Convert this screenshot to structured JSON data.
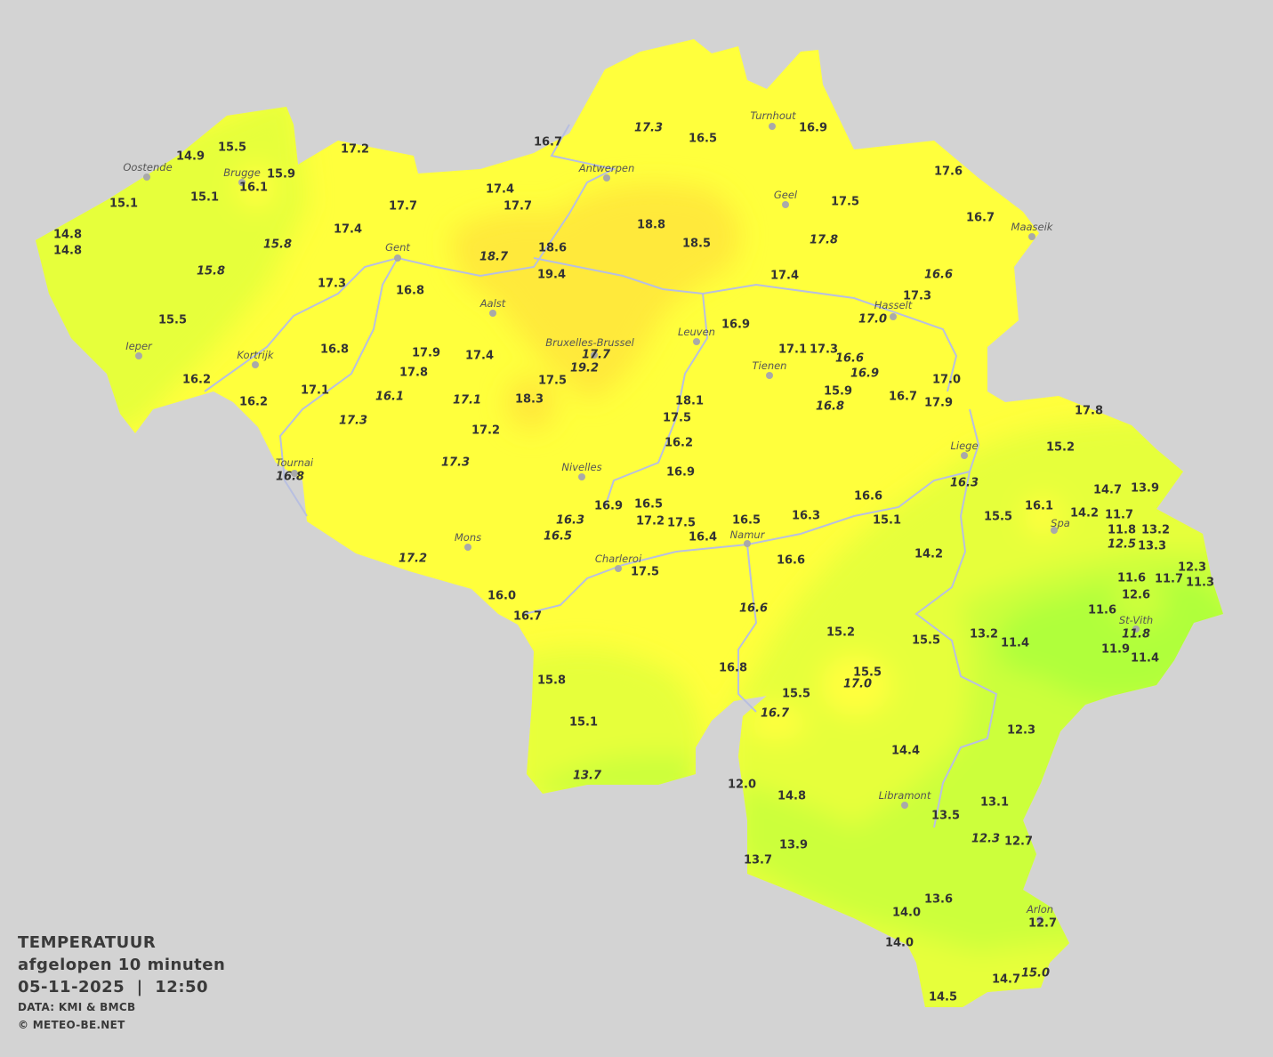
{
  "map": {
    "country": "Belgium",
    "colors": {
      "background": "#d3d3d3",
      "warm": "#ffff3c",
      "warmer": "#ffe93a",
      "mild": "#e6ff3a",
      "cool": "#ccff3a",
      "cooler": "#b0ff3a",
      "rivers": "#b8bfe0"
    },
    "cities": [
      "Oostende",
      "Brugge",
      "Antwerpen",
      "Turnhout",
      "Geel",
      "Maaseik",
      "Gent",
      "Aalst",
      "Hasselt",
      "Leuven",
      "Bruxelles-Brussel",
      "Tienen",
      "Ieper",
      "Kortrijk",
      "Tournai",
      "Nivelles",
      "Liege",
      "Spa",
      "Mons",
      "Namur",
      "Charleroi",
      "St-Vith",
      "Libramont",
      "Arlon"
    ],
    "temperatures": [
      {
        "v": "15.5"
      },
      {
        "v": "14.9"
      },
      {
        "v": "16.7"
      },
      {
        "v": "17.2"
      },
      {
        "v": "16.5"
      },
      {
        "v": "16.9"
      },
      {
        "v": "17.6"
      },
      {
        "v": "15.9"
      },
      {
        "v": "16.1"
      },
      {
        "v": "15.1"
      },
      {
        "v": "15.1"
      },
      {
        "v": "17.4"
      },
      {
        "v": "17.7"
      },
      {
        "v": "17.7"
      },
      {
        "v": "17.5"
      },
      {
        "v": "16.7"
      },
      {
        "v": "14.8"
      },
      {
        "v": "14.8"
      },
      {
        "v": "17.4"
      },
      {
        "v": "18.8"
      },
      {
        "v": "18.5"
      },
      {
        "v": "18.6"
      },
      {
        "v": "19.4"
      },
      {
        "v": "17.4"
      },
      {
        "v": "17.3"
      },
      {
        "v": "16.8"
      },
      {
        "v": "17.3"
      },
      {
        "v": "15.5"
      },
      {
        "v": "16.9"
      },
      {
        "v": "16.8"
      },
      {
        "v": "17.9"
      },
      {
        "v": "17.4"
      },
      {
        "v": "17.1"
      },
      {
        "v": "17.3"
      },
      {
        "v": "17.8"
      },
      {
        "v": "16.2"
      },
      {
        "v": "17.5"
      },
      {
        "v": "17.0"
      },
      {
        "v": "17.1"
      },
      {
        "v": "15.9"
      },
      {
        "v": "16.7"
      },
      {
        "v": "18.3"
      },
      {
        "v": "18.1"
      },
      {
        "v": "16.2"
      },
      {
        "v": "17.9"
      },
      {
        "v": "17.5"
      },
      {
        "v": "17.8"
      },
      {
        "v": "17.2"
      },
      {
        "v": "16.2"
      },
      {
        "v": "15.2"
      },
      {
        "v": "16.9"
      },
      {
        "v": "14.7"
      },
      {
        "v": "13.9"
      },
      {
        "v": "16.6"
      },
      {
        "v": "16.9"
      },
      {
        "v": "16.5"
      },
      {
        "v": "15.5"
      },
      {
        "v": "16.1"
      },
      {
        "v": "14.2"
      },
      {
        "v": "11.7"
      },
      {
        "v": "17.2"
      },
      {
        "v": "17.5"
      },
      {
        "v": "16.5"
      },
      {
        "v": "16.3"
      },
      {
        "v": "15.1"
      },
      {
        "v": "11.8"
      },
      {
        "v": "13.2"
      },
      {
        "v": "16.4"
      },
      {
        "v": "13.3"
      },
      {
        "v": "14.2"
      },
      {
        "v": "16.6"
      },
      {
        "v": "12.3"
      },
      {
        "v": "17.5"
      },
      {
        "v": "11.6"
      },
      {
        "v": "11.7"
      },
      {
        "v": "11.3"
      },
      {
        "v": "12.6"
      },
      {
        "v": "16.0"
      },
      {
        "v": "11.6"
      },
      {
        "v": "16.7"
      },
      {
        "v": "13.2"
      },
      {
        "v": "15.2"
      },
      {
        "v": "15.5"
      },
      {
        "v": "11.4"
      },
      {
        "v": "11.9"
      },
      {
        "v": "11.4"
      },
      {
        "v": "16.8"
      },
      {
        "v": "15.5"
      },
      {
        "v": "15.8"
      },
      {
        "v": "15.5"
      },
      {
        "v": "15.1"
      },
      {
        "v": "12.3"
      },
      {
        "v": "14.4"
      },
      {
        "v": "12.0"
      },
      {
        "v": "14.8"
      },
      {
        "v": "13.1"
      },
      {
        "v": "13.5"
      },
      {
        "v": "12.7"
      },
      {
        "v": "13.9"
      },
      {
        "v": "13.7"
      },
      {
        "v": "13.6"
      },
      {
        "v": "14.0"
      },
      {
        "v": "12.7"
      },
      {
        "v": "14.0"
      },
      {
        "v": "14.7"
      },
      {
        "v": "14.5"
      },
      {
        "v": "17.3",
        "italic": true
      },
      {
        "v": "15.8",
        "italic": true
      },
      {
        "v": "15.8",
        "italic": true
      },
      {
        "v": "18.7",
        "italic": true
      },
      {
        "v": "17.8",
        "italic": true
      },
      {
        "v": "16.6",
        "italic": true
      },
      {
        "v": "17.0",
        "italic": true
      },
      {
        "v": "17.7",
        "italic": true
      },
      {
        "v": "19.2",
        "italic": true
      },
      {
        "v": "16.6",
        "italic": true
      },
      {
        "v": "16.9",
        "italic": true
      },
      {
        "v": "16.8",
        "italic": true
      },
      {
        "v": "16.1",
        "italic": true
      },
      {
        "v": "17.1",
        "italic": true
      },
      {
        "v": "17.3",
        "italic": true
      },
      {
        "v": "17.3",
        "italic": true
      },
      {
        "v": "16.8",
        "italic": true
      },
      {
        "v": "16.3",
        "italic": true
      },
      {
        "v": "16.3",
        "italic": true
      },
      {
        "v": "16.5",
        "italic": true
      },
      {
        "v": "17.2",
        "italic": true
      },
      {
        "v": "12.5",
        "italic": true
      },
      {
        "v": "16.6",
        "italic": true
      },
      {
        "v": "11.8",
        "italic": true
      },
      {
        "v": "17.0",
        "italic": true
      },
      {
        "v": "16.7",
        "italic": true
      },
      {
        "v": "13.7",
        "italic": true
      },
      {
        "v": "12.3",
        "italic": true
      },
      {
        "v": "15.0",
        "italic": true
      }
    ]
  },
  "legend": {
    "title": "TEMPERATUUR",
    "subtitle": "afgelopen 10 minuten",
    "datetime": "05-11-2025  |  12:50",
    "source": "DATA: KMI & BMCB",
    "copyright": "© METEO-BE.NET"
  }
}
